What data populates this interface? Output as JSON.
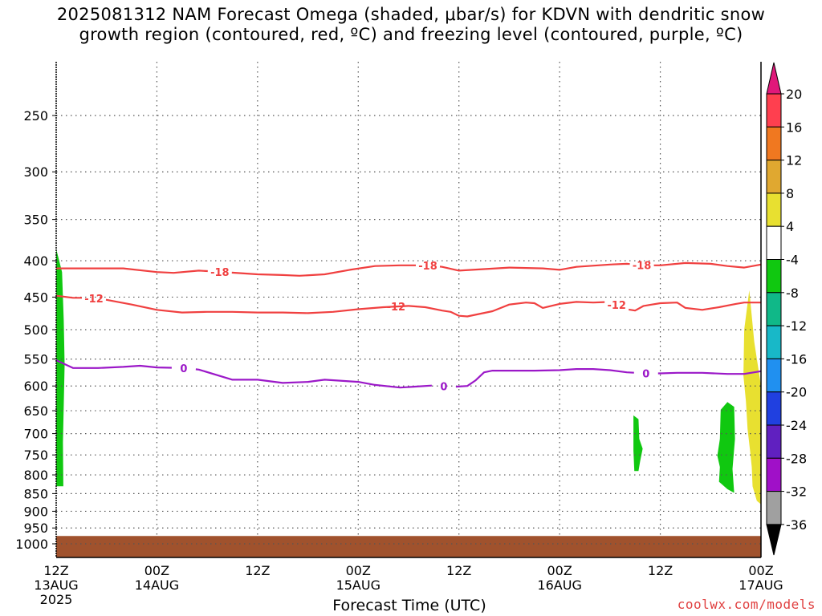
{
  "title_line1": "2025081312 NAM Forecast Omega (shaded, μbar/s) for KDVN with dendritic snow",
  "title_line2": "growth region (contoured, red, ºC) and freezing level (contoured, purple, ºC)",
  "credit": "coolwx.com/models",
  "colors": {
    "temp_contour": "#f04040",
    "freezing_contour": "#9b18c8",
    "ground": "#a0522d"
  },
  "chart_data": {
    "type": "heatmap",
    "title": "2025081312 NAM Forecast Omega (shaded, μbar/s) for KDVN with dendritic snow growth region (contoured, red, ºC) and freezing level (contoured, purple, ºC)",
    "xlabel": "Forecast Time (UTC)",
    "ylabel": "",
    "x_range_hours": [
      0,
      84
    ],
    "x_ticks": [
      {
        "hour": 0,
        "lines": [
          "12Z",
          "13AUG",
          "2025"
        ]
      },
      {
        "hour": 12,
        "lines": [
          "00Z",
          "14AUG"
        ]
      },
      {
        "hour": 24,
        "lines": [
          "12Z"
        ]
      },
      {
        "hour": 36,
        "lines": [
          "00Z",
          "15AUG"
        ]
      },
      {
        "hour": 48,
        "lines": [
          "12Z"
        ]
      },
      {
        "hour": 60,
        "lines": [
          "00Z",
          "16AUG"
        ]
      },
      {
        "hour": 72,
        "lines": [
          "12Z"
        ]
      },
      {
        "hour": 84,
        "lines": [
          "00Z",
          "17AUG"
        ]
      }
    ],
    "y_axis": "pressure (hPa), log scale, inverted",
    "y_range": [
      1000,
      200
    ],
    "y_ticks": [
      250,
      300,
      350,
      400,
      450,
      500,
      550,
      600,
      650,
      700,
      750,
      800,
      850,
      900,
      950,
      1000
    ],
    "grid": true,
    "colorbar": {
      "levels": [
        20,
        16,
        12,
        8,
        4,
        -4,
        -8,
        -12,
        -16,
        -20,
        -24,
        -28,
        -32,
        -36
      ],
      "colors": [
        "#ff3f4f",
        "#f07820",
        "#e0a830",
        "#e8e030",
        "#ffffff",
        "#10c810",
        "#10b888",
        "#18b8c8",
        "#2090f0",
        "#2040e0",
        "#6020c0",
        "#a010c8",
        "#a0a0a0"
      ],
      "max_arrow_color": "#e0187a",
      "min_arrow_color": "#000000"
    },
    "contours": [
      {
        "name": "-18",
        "color": "#f04040",
        "label_hours": [
          19.5,
          44.3,
          69.8
        ],
        "points": [
          [
            0,
            410
          ],
          [
            3,
            410
          ],
          [
            8,
            410
          ],
          [
            12,
            415
          ],
          [
            14,
            416
          ],
          [
            17,
            413
          ],
          [
            20,
            415
          ],
          [
            24,
            418
          ],
          [
            27,
            419
          ],
          [
            29,
            420
          ],
          [
            32,
            418
          ],
          [
            35,
            412
          ],
          [
            38,
            407
          ],
          [
            41,
            406
          ],
          [
            44,
            406
          ],
          [
            46,
            408
          ],
          [
            48,
            413
          ],
          [
            51,
            411
          ],
          [
            54,
            409
          ],
          [
            58,
            410
          ],
          [
            60,
            412
          ],
          [
            62,
            408
          ],
          [
            66,
            405
          ],
          [
            68,
            404
          ],
          [
            70,
            406
          ],
          [
            72,
            406
          ],
          [
            75,
            403
          ],
          [
            78,
            404
          ],
          [
            80,
            407
          ],
          [
            82,
            409
          ],
          [
            84,
            405
          ]
        ]
      },
      {
        "name": "-12",
        "color": "#f04040",
        "label_hours": [
          4.5,
          40.5,
          66.8
        ],
        "points": [
          [
            0,
            448
          ],
          [
            2,
            451
          ],
          [
            4,
            451
          ],
          [
            6,
            454
          ],
          [
            9,
            461
          ],
          [
            12,
            469
          ],
          [
            15,
            473
          ],
          [
            18,
            472
          ],
          [
            21,
            472
          ],
          [
            24,
            473
          ],
          [
            27,
            473
          ],
          [
            30,
            474
          ],
          [
            33,
            472
          ],
          [
            36,
            468
          ],
          [
            39,
            465
          ],
          [
            42,
            463
          ],
          [
            44,
            465
          ],
          [
            46,
            470
          ],
          [
            47,
            472
          ],
          [
            48,
            478
          ],
          [
            49,
            479
          ],
          [
            52,
            471
          ],
          [
            54,
            461
          ],
          [
            56,
            458
          ],
          [
            57,
            459
          ],
          [
            58,
            466
          ],
          [
            60,
            460
          ],
          [
            62,
            457
          ],
          [
            64,
            458
          ],
          [
            66,
            457
          ],
          [
            68,
            468
          ],
          [
            69,
            470
          ],
          [
            70,
            463
          ],
          [
            71,
            461
          ],
          [
            72,
            459
          ],
          [
            74,
            458
          ],
          [
            75,
            466
          ],
          [
            77,
            469
          ],
          [
            79,
            465
          ],
          [
            81,
            460
          ],
          [
            82,
            458
          ],
          [
            84,
            458
          ]
        ]
      },
      {
        "name": "0",
        "color": "#9b18c8",
        "label_hours": [
          15.2,
          46.2,
          70.3
        ],
        "points": [
          [
            0,
            552
          ],
          [
            2,
            566
          ],
          [
            5,
            566
          ],
          [
            8,
            564
          ],
          [
            10,
            562
          ],
          [
            12,
            565
          ],
          [
            15,
            566
          ],
          [
            17,
            569
          ],
          [
            21,
            588
          ],
          [
            24,
            588
          ],
          [
            27,
            594
          ],
          [
            30,
            592
          ],
          [
            32,
            588
          ],
          [
            36,
            592
          ],
          [
            38,
            598
          ],
          [
            41,
            603
          ],
          [
            43,
            601
          ],
          [
            45,
            599
          ],
          [
            47,
            602
          ],
          [
            49,
            600
          ],
          [
            50,
            589
          ],
          [
            51,
            574
          ],
          [
            52,
            571
          ],
          [
            54,
            571
          ],
          [
            57,
            571
          ],
          [
            60,
            570
          ],
          [
            62,
            568
          ],
          [
            64,
            568
          ],
          [
            66,
            570
          ],
          [
            68,
            574
          ],
          [
            70,
            576
          ],
          [
            72,
            576
          ],
          [
            74,
            575
          ],
          [
            77,
            575
          ],
          [
            80,
            577
          ],
          [
            82,
            577
          ],
          [
            84,
            572
          ]
        ]
      }
    ],
    "shaded_regions": [
      {
        "value_range": [
          -8,
          -4
        ],
        "color": "#10c810",
        "outline": [
          [
            0,
            385
          ],
          [
            0.7,
            415
          ],
          [
            0.9,
            485
          ],
          [
            1.0,
            560
          ],
          [
            0.9,
            640
          ],
          [
            0.8,
            720
          ],
          [
            0.85,
            830
          ],
          [
            0,
            830
          ]
        ]
      },
      {
        "value_range": [
          -8,
          -4
        ],
        "color": "#10c810",
        "outline": [
          [
            68.8,
            660
          ],
          [
            69.4,
            668
          ],
          [
            69.5,
            712
          ],
          [
            69.9,
            735
          ],
          [
            69.6,
            765
          ],
          [
            69.4,
            790
          ],
          [
            68.9,
            790
          ],
          [
            68.8,
            740
          ]
        ]
      },
      {
        "value_range": [
          -8,
          -4
        ],
        "color": "#10c810",
        "outline": [
          [
            79.2,
            648
          ],
          [
            80.0,
            632
          ],
          [
            80.8,
            642
          ],
          [
            80.9,
            712
          ],
          [
            80.6,
            785
          ],
          [
            80.8,
            848
          ],
          [
            80.0,
            838
          ],
          [
            79.0,
            818
          ],
          [
            79.1,
            780
          ],
          [
            78.8,
            752
          ],
          [
            79.1,
            712
          ]
        ]
      },
      {
        "value_range": [
          4,
          8
        ],
        "color": "#e8e030",
        "outline": [
          [
            82.0,
            500
          ],
          [
            82.6,
            440
          ],
          [
            83.2,
            520
          ],
          [
            84,
            600
          ],
          [
            84,
            880
          ],
          [
            83.5,
            870
          ],
          [
            83.0,
            830
          ],
          [
            82.9,
            780
          ],
          [
            82.7,
            740
          ],
          [
            82.4,
            690
          ],
          [
            82.2,
            630
          ],
          [
            81.9,
            580
          ]
        ]
      }
    ],
    "ground_level_hpa": 975
  }
}
